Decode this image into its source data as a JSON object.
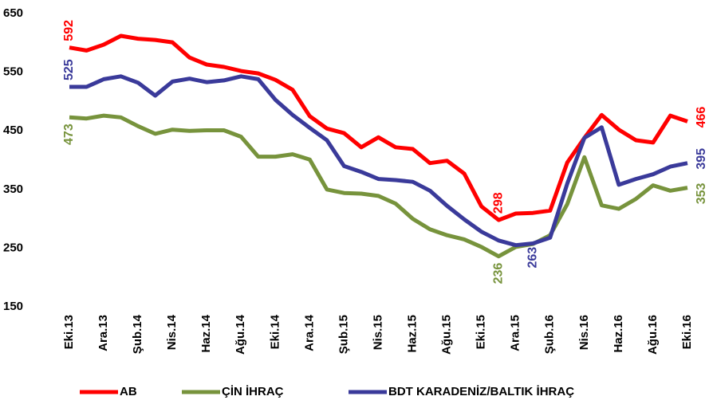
{
  "chart_data": {
    "type": "line",
    "categories": [
      "Eki.13",
      null,
      "Ara.13",
      null,
      "Şub.14",
      null,
      "Nis.14",
      null,
      "Haz.14",
      null,
      "Ağu.14",
      null,
      "Eki.14",
      null,
      "Ara.14",
      null,
      "Şub.15",
      null,
      "Nis.15",
      null,
      "Haz.15",
      null,
      "Ağu.15",
      null,
      "Eki.15",
      null,
      "Ara.15",
      null,
      "Şub.16",
      null,
      "Nis.16",
      null,
      "Haz.16",
      null,
      "Ağu.16",
      null,
      "Eki.16"
    ],
    "series": [
      {
        "name": "AB",
        "color": "#ff0000",
        "values": [
          592,
          587,
          597,
          612,
          607,
          605,
          601,
          575,
          563,
          559,
          552,
          548,
          537,
          520,
          475,
          454,
          446,
          422,
          439,
          422,
          419,
          395,
          399,
          377,
          321,
          298,
          309,
          310,
          314,
          396,
          438,
          477,
          452,
          434,
          430,
          476,
          466
        ],
        "value_labels": [
          "592",
          null,
          null,
          null,
          null,
          null,
          null,
          null,
          null,
          null,
          null,
          null,
          null,
          null,
          null,
          null,
          null,
          null,
          null,
          null,
          null,
          null,
          null,
          null,
          null,
          "298",
          null,
          null,
          null,
          null,
          null,
          null,
          null,
          null,
          null,
          null,
          "466"
        ]
      },
      {
        "name": "ÇİN İHRAÇ",
        "color": "#77933c",
        "values": [
          473,
          471,
          476,
          473,
          458,
          445,
          452,
          450,
          451,
          451,
          440,
          406,
          406,
          410,
          401,
          350,
          344,
          343,
          339,
          326,
          300,
          282,
          272,
          265,
          252,
          236,
          252,
          257,
          272,
          325,
          405,
          323,
          317,
          334,
          357,
          348,
          353
        ],
        "value_labels": [
          "473",
          null,
          null,
          null,
          null,
          null,
          null,
          null,
          null,
          null,
          null,
          null,
          null,
          null,
          null,
          null,
          null,
          null,
          null,
          null,
          null,
          null,
          null,
          null,
          null,
          "236",
          null,
          null,
          null,
          null,
          null,
          null,
          null,
          null,
          null,
          null,
          "353"
        ]
      },
      {
        "name": "BDT KARADENİZ/BALTIK İHRAÇ",
        "color": "#3a3a9a",
        "values": [
          525,
          525,
          538,
          543,
          532,
          510,
          534,
          539,
          533,
          536,
          543,
          538,
          503,
          477,
          455,
          434,
          390,
          380,
          368,
          366,
          363,
          348,
          322,
          299,
          278,
          263,
          255,
          258,
          268,
          360,
          438,
          456,
          358,
          368,
          376,
          389,
          395
        ],
        "value_labels": [
          "525",
          null,
          null,
          null,
          null,
          null,
          null,
          null,
          null,
          null,
          null,
          null,
          null,
          null,
          null,
          null,
          null,
          null,
          null,
          null,
          null,
          null,
          null,
          null,
          null,
          "263",
          null,
          null,
          null,
          null,
          null,
          null,
          null,
          null,
          null,
          null,
          "395"
        ]
      }
    ],
    "ylim": [
      150,
      650
    ],
    "yticks": [
      150,
      250,
      350,
      450,
      550,
      650
    ],
    "grid": false,
    "legend": "bottom"
  }
}
